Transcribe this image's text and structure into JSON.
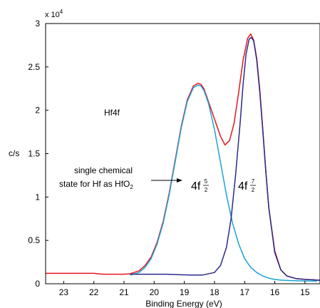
{
  "chart_data": {
    "type": "line",
    "title": "",
    "xlabel": "Binding Energy (eV)",
    "ylabel": "c/s",
    "y_multiplier": "x 10",
    "y_multiplier_exp": "4",
    "x_reversed": true,
    "xlim": [
      23.6,
      14.5
    ],
    "ylim": [
      0,
      30000
    ],
    "x_ticks": [
      23,
      22,
      21,
      20,
      19,
      18,
      17,
      16,
      15
    ],
    "y_ticks": [
      0,
      5000,
      10000,
      15000,
      20000,
      25000,
      30000
    ],
    "y_tick_labels": [
      "0",
      "0.5",
      "1",
      "1.5",
      "2",
      "2.5",
      "3"
    ],
    "grid": false,
    "series": [
      {
        "color": "#e8141e",
        "x": [
          23.6,
          22.0,
          21.7,
          21.0,
          20.8,
          20.5,
          20.3,
          20.1,
          19.9,
          19.7,
          19.5,
          19.3,
          19.1,
          18.9,
          18.7,
          18.55,
          18.45,
          18.35,
          18.2,
          18.0,
          17.8,
          17.65,
          17.5,
          17.35,
          17.2,
          17.05,
          16.9,
          16.8,
          16.7,
          16.6,
          16.5,
          16.4,
          16.3,
          16.2,
          16.0,
          15.8,
          15.6,
          15.3,
          15.0,
          14.7,
          14.5
        ],
        "y": [
          1200,
          1200,
          1100,
          1100,
          1150,
          1500,
          2100,
          3100,
          4800,
          7200,
          10500,
          14300,
          18200,
          21200,
          22800,
          23100,
          23000,
          22500,
          21000,
          19000,
          17000,
          16000,
          16500,
          18500,
          22000,
          25800,
          28300,
          28800,
          28100,
          26000,
          22500,
          18000,
          13200,
          8800,
          3800,
          1600,
          900,
          600,
          500,
          450,
          400
        ]
      },
      {
        "color": "#1ba3d6",
        "x": [
          20.8,
          20.5,
          20.3,
          20.1,
          19.9,
          19.7,
          19.5,
          19.3,
          19.1,
          18.9,
          18.7,
          18.55,
          18.45,
          18.35,
          18.2,
          18.0,
          17.8,
          17.6,
          17.4,
          17.2,
          17.0,
          16.8,
          16.6,
          16.4,
          16.2,
          16.0,
          15.8,
          15.5,
          15.2,
          14.9,
          14.6
        ],
        "y": [
          1000,
          1300,
          1900,
          2900,
          4600,
          7000,
          10300,
          14100,
          18000,
          21000,
          22600,
          22900,
          22800,
          22300,
          20800,
          17800,
          14000,
          10200,
          7000,
          4600,
          2900,
          1900,
          1300,
          900,
          650,
          500,
          420,
          370,
          340,
          320,
          310
        ]
      },
      {
        "color": "#2a2a8a",
        "x": [
          20.8,
          20.4,
          20.0,
          19.6,
          19.2,
          18.8,
          18.4,
          18.0,
          17.8,
          17.6,
          17.45,
          17.3,
          17.15,
          17.05,
          16.95,
          16.85,
          16.78,
          16.7,
          16.6,
          16.5,
          16.4,
          16.3,
          16.2,
          16.0,
          15.8,
          15.6,
          15.3,
          15.0,
          14.7,
          14.5
        ],
        "y": [
          1100,
          1100,
          1100,
          1100,
          1050,
          1000,
          1000,
          1300,
          2100,
          4200,
          7500,
          12500,
          18500,
          23000,
          26500,
          28200,
          28400,
          28000,
          25800,
          22200,
          17800,
          13100,
          8800,
          3600,
          1600,
          900,
          600,
          500,
          450,
          400
        ]
      }
    ],
    "annotations": {
      "species": "Hf4f",
      "state_line1": "single chemical",
      "state_line2_prefix": "state for Hf as HfO",
      "state_line2_sub": "2",
      "peak1_base": "4f",
      "peak1_frac_num": "5",
      "peak1_frac_den": "2",
      "peak2_base": "4f",
      "peak2_frac_num": "7",
      "peak2_frac_den": "2"
    }
  }
}
